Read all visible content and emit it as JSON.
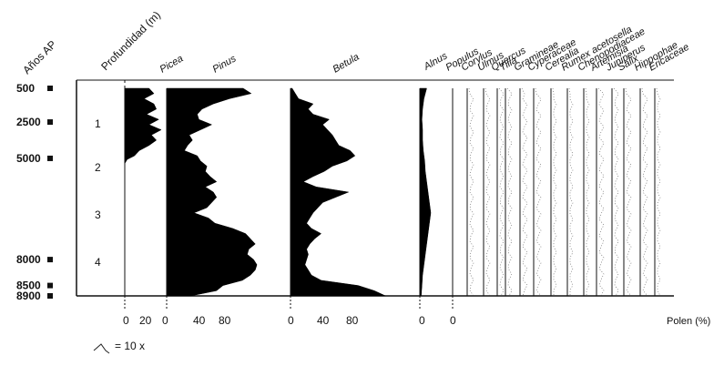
{
  "chart_data": {
    "type": "area",
    "headers": {
      "ages": "Años AP",
      "depth": "Profundidad (m)"
    },
    "age_ticks": [
      {
        "label": "500",
        "at_depth": 0.0
      },
      {
        "label": "2500",
        "at_depth": 0.65
      },
      {
        "label": "5000",
        "at_depth": 1.35
      },
      {
        "label": "8000",
        "at_depth": 3.3
      },
      {
        "label": "8500",
        "at_depth": 3.8
      },
      {
        "label": "8900",
        "at_depth": 4.0
      }
    ],
    "depth_ticks": [
      "1",
      "2",
      "3",
      "4"
    ],
    "depth_range": [
      0,
      4.0
    ],
    "series": [
      {
        "name": "Picea",
        "scale_ticks": [
          "0",
          "20"
        ],
        "xmax": 30,
        "values": [
          [
            0,
            20
          ],
          [
            0.1,
            24
          ],
          [
            0.2,
            16
          ],
          [
            0.3,
            24
          ],
          [
            0.4,
            26
          ],
          [
            0.5,
            18
          ],
          [
            0.6,
            28
          ],
          [
            0.7,
            20
          ],
          [
            0.8,
            30
          ],
          [
            0.9,
            22
          ],
          [
            1.0,
            26
          ],
          [
            1.1,
            20
          ],
          [
            1.2,
            12
          ],
          [
            1.3,
            8
          ],
          [
            1.37,
            2
          ],
          [
            1.45,
            0
          ]
        ]
      },
      {
        "name": "Pinus",
        "scale_ticks": [
          "0",
          "40",
          "80"
        ],
        "xmax": 130,
        "values": [
          [
            0,
            95
          ],
          [
            0.1,
            105
          ],
          [
            0.2,
            78
          ],
          [
            0.3,
            58
          ],
          [
            0.4,
            44
          ],
          [
            0.5,
            38
          ],
          [
            0.6,
            40
          ],
          [
            0.7,
            56
          ],
          [
            0.8,
            42
          ],
          [
            0.9,
            28
          ],
          [
            1.0,
            32
          ],
          [
            1.1,
            26
          ],
          [
            1.2,
            22
          ],
          [
            1.3,
            38
          ],
          [
            1.4,
            42
          ],
          [
            1.5,
            50
          ],
          [
            1.6,
            48
          ],
          [
            1.7,
            54
          ],
          [
            1.8,
            62
          ],
          [
            1.9,
            48
          ],
          [
            2.0,
            58
          ],
          [
            2.1,
            62
          ],
          [
            2.2,
            56
          ],
          [
            2.3,
            50
          ],
          [
            2.4,
            34
          ],
          [
            2.5,
            52
          ],
          [
            2.6,
            60
          ],
          [
            2.7,
            82
          ],
          [
            2.8,
            98
          ],
          [
            2.9,
            104
          ],
          [
            3.0,
            110
          ],
          [
            3.1,
            102
          ],
          [
            3.2,
            100
          ],
          [
            3.3,
            108
          ],
          [
            3.4,
            112
          ],
          [
            3.5,
            110
          ],
          [
            3.6,
            104
          ],
          [
            3.7,
            94
          ],
          [
            3.8,
            70
          ],
          [
            3.9,
            62
          ],
          [
            4.0,
            30
          ]
        ]
      },
      {
        "name": "Betula",
        "scale_ticks": [
          "0",
          "40",
          "80"
        ],
        "xmax": 130,
        "values": [
          [
            0,
            2
          ],
          [
            0.1,
            6
          ],
          [
            0.2,
            10
          ],
          [
            0.3,
            28
          ],
          [
            0.4,
            22
          ],
          [
            0.5,
            28
          ],
          [
            0.6,
            48
          ],
          [
            0.7,
            40
          ],
          [
            0.8,
            46
          ],
          [
            0.9,
            52
          ],
          [
            1.0,
            56
          ],
          [
            1.1,
            60
          ],
          [
            1.2,
            74
          ],
          [
            1.3,
            80
          ],
          [
            1.4,
            70
          ],
          [
            1.5,
            52
          ],
          [
            1.6,
            42
          ],
          [
            1.7,
            28
          ],
          [
            1.8,
            16
          ],
          [
            1.9,
            32
          ],
          [
            2.0,
            72
          ],
          [
            2.1,
            56
          ],
          [
            2.2,
            40
          ],
          [
            2.3,
            34
          ],
          [
            2.4,
            28
          ],
          [
            2.5,
            24
          ],
          [
            2.6,
            20
          ],
          [
            2.7,
            26
          ],
          [
            2.8,
            38
          ],
          [
            2.9,
            30
          ],
          [
            3.0,
            24
          ],
          [
            3.1,
            20
          ],
          [
            3.2,
            22
          ],
          [
            3.3,
            20
          ],
          [
            3.4,
            18
          ],
          [
            3.5,
            22
          ],
          [
            3.6,
            26
          ],
          [
            3.7,
            38
          ],
          [
            3.8,
            84
          ],
          [
            3.9,
            104
          ],
          [
            4.0,
            118
          ]
        ]
      },
      {
        "name": "Alnus",
        "scale_ticks": [
          "0"
        ],
        "xmax": 40,
        "values": [
          [
            0,
            10
          ],
          [
            0.2,
            6
          ],
          [
            0.4,
            4
          ],
          [
            0.6,
            3
          ],
          [
            0.8,
            4
          ],
          [
            1.0,
            4
          ],
          [
            1.2,
            5
          ],
          [
            1.4,
            7
          ],
          [
            1.6,
            8
          ],
          [
            1.8,
            10
          ],
          [
            2.0,
            12
          ],
          [
            2.2,
            14
          ],
          [
            2.4,
            16
          ],
          [
            2.6,
            14
          ],
          [
            2.8,
            12
          ],
          [
            3.0,
            10
          ],
          [
            3.2,
            8
          ],
          [
            3.4,
            6
          ],
          [
            3.6,
            4
          ],
          [
            3.8,
            3
          ],
          [
            4.0,
            2
          ]
        ]
      },
      {
        "name": "Populus",
        "scale_ticks": [
          "0"
        ],
        "xmax": 0,
        "values": []
      },
      {
        "name": "Corylus",
        "scale_ticks": [],
        "xmax": 0,
        "values": []
      },
      {
        "name": "Ulmus",
        "scale_ticks": [],
        "xmax": 0,
        "values": []
      },
      {
        "name": "Quercus",
        "scale_ticks": [],
        "xmax": 0,
        "values": []
      },
      {
        "name": "Tilia",
        "scale_ticks": [],
        "xmax": 0,
        "values": []
      },
      {
        "name": "Gramineae",
        "scale_ticks": [],
        "xmax": 0,
        "values": []
      },
      {
        "name": "Cyperaceae",
        "scale_ticks": [],
        "xmax": 0,
        "values": []
      },
      {
        "name": "Cerealia",
        "scale_ticks": [],
        "xmax": 0,
        "values": []
      },
      {
        "name": "Rumex acetosella",
        "scale_ticks": [],
        "xmax": 0,
        "values": []
      },
      {
        "name": "Chenopodiaceae",
        "scale_ticks": [],
        "xmax": 0,
        "values": []
      },
      {
        "name": "Artemisia",
        "scale_ticks": [],
        "xmax": 0,
        "values": []
      },
      {
        "name": "Juniperus",
        "scale_ticks": [],
        "xmax": 0,
        "values": []
      },
      {
        "name": "Salix",
        "scale_ticks": [],
        "xmax": 0,
        "values": []
      },
      {
        "name": "Hippophae",
        "scale_ticks": [],
        "xmax": 0,
        "values": []
      },
      {
        "name": "Ericaceae",
        "scale_ticks": [],
        "xmax": 0,
        "values": []
      }
    ],
    "xlabel": "Polen (%)",
    "legend_text": "= 10 x"
  }
}
